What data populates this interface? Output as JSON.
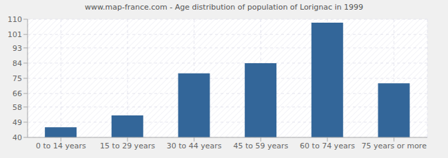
{
  "chart_data": {
    "type": "bar",
    "title": "www.map-france.com - Age distribution of population of Lorignac in 1999",
    "categories": [
      "0 to 14 years",
      "15 to 29 years",
      "30 to 44 years",
      "45 to 59 years",
      "60 to 74 years",
      "75 years or more"
    ],
    "values": [
      46,
      53,
      78,
      84,
      108,
      72
    ],
    "color": "#336699",
    "ylim": [
      40,
      110
    ],
    "yticks": [
      40,
      49,
      58,
      66,
      75,
      84,
      93,
      101,
      110
    ],
    "grid": true
  }
}
